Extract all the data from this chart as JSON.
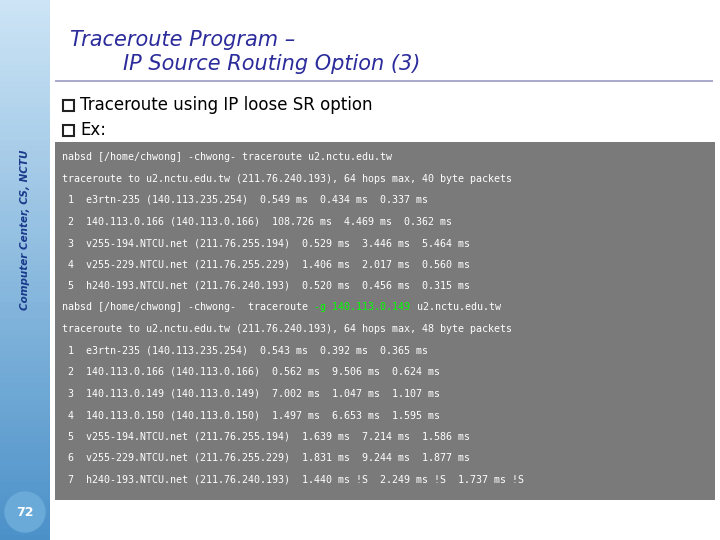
{
  "title_line1": "Traceroute Program –",
  "title_line2": "        IP Source Routing Option (3)",
  "title_color": "#2B2B9B",
  "bullet1": "Traceroute using IP loose SR option",
  "bullet2": "Ex:",
  "sidebar_text": "Computer Center, CS, NCTU",
  "sidebar_top_color": "#CCE4F5",
  "sidebar_bot_color": "#4FA0D8",
  "page_num": "72",
  "bg_color": "#FFFFFF",
  "code_bg": "#7A7A7A",
  "code_color": "#FFFFFF",
  "code_green": "#00FF00",
  "code_lines": [
    {
      "text": "nabsd [/home/chwong] -chwong- traceroute u2.nctu.edu.tw",
      "has_green": false
    },
    {
      "text": "traceroute to u2.nctu.edu.tw (211.76.240.193), 64 hops max, 40 byte packets",
      "has_green": false
    },
    {
      "text": " 1  e3rtn-235 (140.113.235.254)  0.549 ms  0.434 ms  0.337 ms",
      "has_green": false
    },
    {
      "text": " 2  140.113.0.166 (140.113.0.166)  108.726 ms  4.469 ms  0.362 ms",
      "has_green": false
    },
    {
      "text": " 3  v255-194.NTCU.net (211.76.255.194)  0.529 ms  3.446 ms  5.464 ms",
      "has_green": false
    },
    {
      "text": " 4  v255-229.NTCU.net (211.76.255.229)  1.406 ms  2.017 ms  0.560 ms",
      "has_green": false
    },
    {
      "text": " 5  h240-193.NTCU.net (211.76.240.193)  0.520 ms  0.456 ms  0.315 ms",
      "has_green": false
    },
    {
      "text": "nabsd [/home/chwong] -chwong-  traceroute ",
      "green_part": "-g 140.113.0.149",
      "tail": " u2.nctu.edu.tw",
      "has_green": true
    },
    {
      "text": "traceroute to u2.nctu.edu.tw (211.76.240.193), 64 hops max, 48 byte packets",
      "has_green": false
    },
    {
      "text": " 1  e3rtn-235 (140.113.235.254)  0.543 ms  0.392 ms  0.365 ms",
      "has_green": false
    },
    {
      "text": " 2  140.113.0.166 (140.113.0.166)  0.562 ms  9.506 ms  0.624 ms",
      "has_green": false
    },
    {
      "text": " 3  140.113.0.149 (140.113.0.149)  7.002 ms  1.047 ms  1.107 ms",
      "has_green": false
    },
    {
      "text": " 4  140.113.0.150 (140.113.0.150)  1.497 ms  6.653 ms  1.595 ms",
      "has_green": false
    },
    {
      "text": " 5  v255-194.NTCU.net (211.76.255.194)  1.639 ms  7.214 ms  1.586 ms",
      "has_green": false
    },
    {
      "text": " 6  v255-229.NTCU.net (211.76.255.229)  1.831 ms  9.244 ms  1.877 ms",
      "has_green": false
    },
    {
      "text": " 7  h240-193.NTCU.net (211.76.240.193)  1.440 ms !S  2.249 ms !S  1.737 ms !S",
      "has_green": false
    }
  ]
}
